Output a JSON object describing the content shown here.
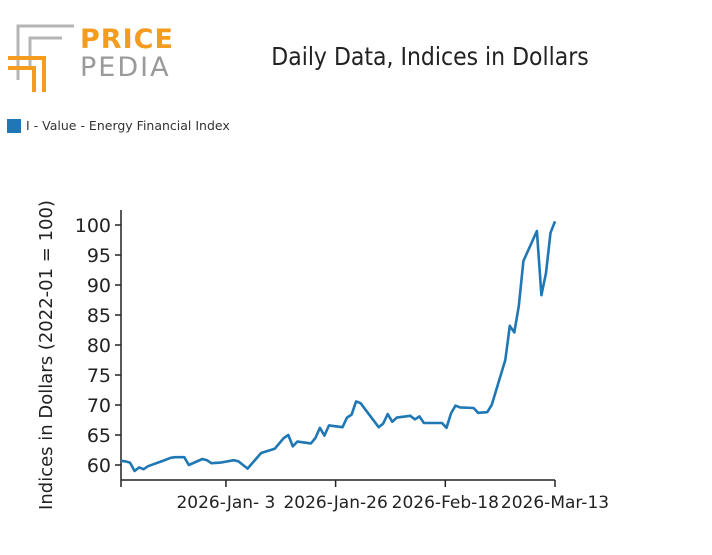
{
  "logo": {
    "word1": "PRICE",
    "word2": "PEDIA"
  },
  "colors": {
    "series": "#1f77b4",
    "logo_orange": "#f39c1f",
    "logo_gray": "#9a9a9a",
    "axis": "#222222"
  },
  "chart_data": {
    "type": "line",
    "title": "Daily Data, Indices in Dollars",
    "ylabel": "Indices in Dollars (2022-01 = 100)",
    "xlabel": "",
    "legend_position": "top-left",
    "grid": false,
    "ylim": [
      57.5,
      102.5
    ],
    "yticks": [
      60,
      65,
      70,
      75,
      80,
      85,
      90,
      95,
      100
    ],
    "xlim": [
      "2025-12-12",
      "2026-03-13"
    ],
    "xticks": [
      {
        "date": "2025-12-12",
        "label": ""
      },
      {
        "date": "2026-01-03",
        "label": "2026-Jan- 3"
      },
      {
        "date": "2026-01-26",
        "label": "2026-Jan-26"
      },
      {
        "date": "2026-02-18",
        "label": "2026-Feb-18"
      },
      {
        "date": "2026-03-13",
        "label": "2026-Mar-13"
      }
    ],
    "series": [
      {
        "name": "I - Value - Energy Financial Index",
        "points": [
          [
            "2025-12-12",
            60.7
          ],
          [
            "2025-12-13",
            60.6
          ],
          [
            "2025-12-14",
            60.4
          ],
          [
            "2025-12-15",
            59.0
          ],
          [
            "2025-12-16",
            59.6
          ],
          [
            "2025-12-17",
            59.3
          ],
          [
            "2025-12-18",
            59.8
          ],
          [
            "2025-12-22",
            60.9
          ],
          [
            "2025-12-23",
            61.2
          ],
          [
            "2025-12-24",
            61.3
          ],
          [
            "2025-12-26",
            61.3
          ],
          [
            "2025-12-27",
            60.0
          ],
          [
            "2025-12-30",
            61.0
          ],
          [
            "2025-12-31",
            60.8
          ],
          [
            "2026-01-01",
            60.3
          ],
          [
            "2026-01-03",
            60.4
          ],
          [
            "2026-01-06",
            60.8
          ],
          [
            "2026-01-07",
            60.6
          ],
          [
            "2026-01-09",
            59.4
          ],
          [
            "2026-01-12",
            62.0
          ],
          [
            "2026-01-15",
            62.7
          ],
          [
            "2026-01-17",
            64.5
          ],
          [
            "2026-01-18",
            65.0
          ],
          [
            "2026-01-19",
            63.1
          ],
          [
            "2026-01-20",
            63.9
          ],
          [
            "2026-01-23",
            63.6
          ],
          [
            "2026-01-24",
            64.5
          ],
          [
            "2026-01-25",
            66.2
          ],
          [
            "2026-01-26",
            64.9
          ],
          [
            "2026-01-27",
            66.6
          ],
          [
            "2026-01-30",
            66.3
          ],
          [
            "2026-01-31",
            67.9
          ],
          [
            "2026-02-01",
            68.4
          ],
          [
            "2026-02-02",
            70.6
          ],
          [
            "2026-02-03",
            70.3
          ],
          [
            "2026-02-07",
            66.3
          ],
          [
            "2026-02-08",
            66.9
          ],
          [
            "2026-02-09",
            68.5
          ],
          [
            "2026-02-10",
            67.2
          ],
          [
            "2026-02-11",
            67.9
          ],
          [
            "2026-02-14",
            68.2
          ],
          [
            "2026-02-15",
            67.6
          ],
          [
            "2026-02-16",
            68.1
          ],
          [
            "2026-02-17",
            67.0
          ],
          [
            "2026-02-21",
            67.0
          ],
          [
            "2026-02-22",
            66.2
          ],
          [
            "2026-02-23",
            68.6
          ],
          [
            "2026-02-24",
            69.9
          ],
          [
            "2026-02-25",
            69.6
          ],
          [
            "2026-02-28",
            69.5
          ],
          [
            "2026-03-01",
            68.7
          ],
          [
            "2026-03-03",
            68.8
          ],
          [
            "2026-03-04",
            70.0
          ],
          [
            "2026-03-07",
            77.5
          ],
          [
            "2026-03-08",
            83.2
          ],
          [
            "2026-03-09",
            82.1
          ],
          [
            "2026-03-10",
            86.5
          ],
          [
            "2026-03-11",
            94.0
          ],
          [
            "2026-03-14",
            99.0
          ],
          [
            "2026-03-15",
            88.3
          ],
          [
            "2026-03-16",
            92.0
          ],
          [
            "2026-03-17",
            98.7
          ],
          [
            "2026-03-18",
            100.6
          ]
        ]
      }
    ]
  }
}
